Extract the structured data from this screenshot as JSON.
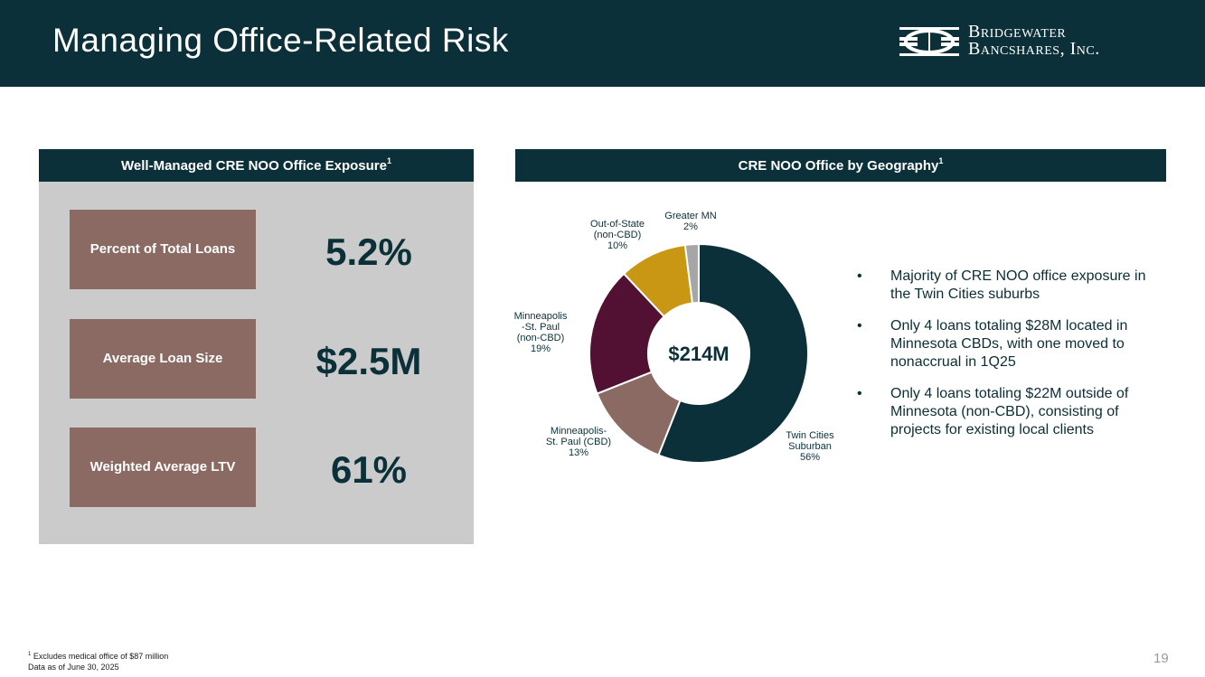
{
  "header": {
    "title": "Managing Office-Related Risk",
    "logo_line1": "Bridgewater",
    "logo_line2": "Bancshares, Inc."
  },
  "left_panel": {
    "heading": "Well-Managed CRE NOO Office Exposure",
    "heading_sup": "1",
    "stats": [
      {
        "label": "Percent of Total Loans",
        "value": "5.2%"
      },
      {
        "label": "Average Loan Size",
        "value": "$2.5M"
      },
      {
        "label": "Weighted Average LTV",
        "value": "61%"
      }
    ]
  },
  "right_panel": {
    "heading": "CRE NOO Office by Geography",
    "heading_sup": "1"
  },
  "chart_data": {
    "type": "pie",
    "title": "CRE NOO Office by Geography",
    "center_label": "$214M",
    "slices": [
      {
        "label_lines": [
          "Twin Cities",
          "Suburban"
        ],
        "value_label": "56%",
        "value": 56,
        "color": "#0b3039"
      },
      {
        "label_lines": [
          "Minneapolis-",
          "St. Paul (CBD)"
        ],
        "value_label": "13%",
        "value": 13,
        "color": "#8b6a63"
      },
      {
        "label_lines": [
          "Minneapolis",
          "-St. Paul",
          "(non-CBD)"
        ],
        "value_label": "19%",
        "value": 19,
        "color": "#521132"
      },
      {
        "label_lines": [
          "Out-of-State",
          "(non-CBD)"
        ],
        "value_label": "10%",
        "value": 10,
        "color": "#c99714"
      },
      {
        "label_lines": [
          "Greater MN"
        ],
        "value_label": "2%",
        "value": 2,
        "color": "#a6a6a6"
      }
    ]
  },
  "bullets": [
    "Majority of CRE NOO office exposure in the Twin Cities suburbs",
    "Only 4 loans totaling $28M located in Minnesota CBDs, with one moved to nonaccrual in 1Q25",
    "Only 4 loans totaling $22M outside of Minnesota (non-CBD), consisting of projects for existing local clients"
  ],
  "bullet_glyph": "•",
  "footnote": {
    "sup": "1",
    "line1": " Excludes medical office of $87 million",
    "line2": "Data as of June 30, 2025"
  },
  "page_number": "19"
}
